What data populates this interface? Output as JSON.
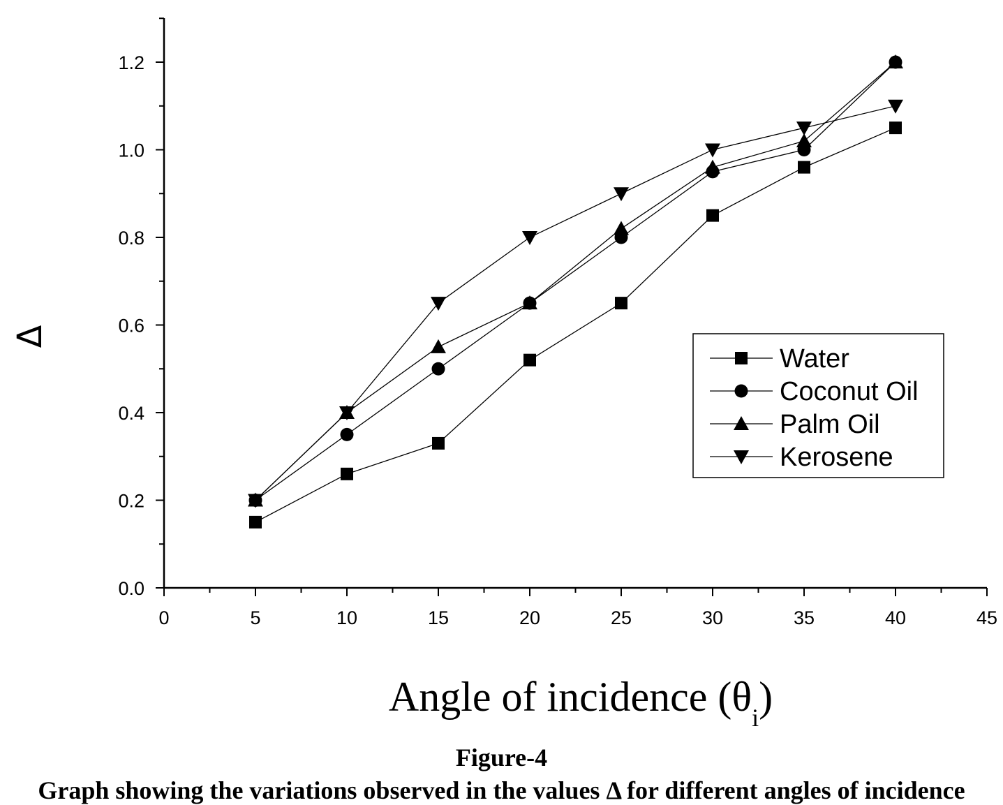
{
  "chart_data": {
    "type": "line",
    "x": [
      5,
      10,
      15,
      20,
      25,
      30,
      35,
      40
    ],
    "series": [
      {
        "name": "Water",
        "marker": "square",
        "values": [
          0.15,
          0.26,
          0.33,
          0.52,
          0.65,
          0.85,
          0.96,
          1.05
        ]
      },
      {
        "name": "Coconut Oil",
        "marker": "circle",
        "values": [
          0.2,
          0.35,
          0.5,
          0.65,
          0.8,
          0.95,
          1.0,
          1.2
        ]
      },
      {
        "name": "Palm Oil",
        "marker": "triangle-up",
        "values": [
          0.2,
          0.4,
          0.55,
          0.65,
          0.82,
          0.96,
          1.02,
          1.2
        ]
      },
      {
        "name": "Kerosene",
        "marker": "triangle-down",
        "values": [
          0.2,
          0.4,
          0.65,
          0.8,
          0.9,
          1.0,
          1.05,
          1.1
        ]
      }
    ],
    "xlim": [
      0,
      45
    ],
    "ylim": [
      0,
      1.3
    ],
    "xticks": [
      0,
      5,
      10,
      15,
      20,
      25,
      30,
      35,
      40,
      45
    ],
    "xtick_labels": [
      "0",
      "5",
      "10",
      "15",
      "20",
      "25",
      "30",
      "35",
      "40",
      "45"
    ],
    "yticks": [
      0,
      0.2,
      0.4,
      0.6,
      0.8,
      1.0,
      1.2
    ],
    "ytick_labels": [
      "0.0",
      "0.2",
      "0.4",
      "0.6",
      "0.8",
      "1.0",
      "1.2"
    ],
    "xlabel": "Angle of incidence (θ",
    "xlabel_subscript": "i",
    "xlabel_close": ")",
    "ylabel": "Δ",
    "grid": false,
    "legend_position": "right"
  },
  "figure": {
    "label": "Figure-4",
    "caption": "Graph showing the variations observed in the values Δ for different angles of incidence"
  }
}
